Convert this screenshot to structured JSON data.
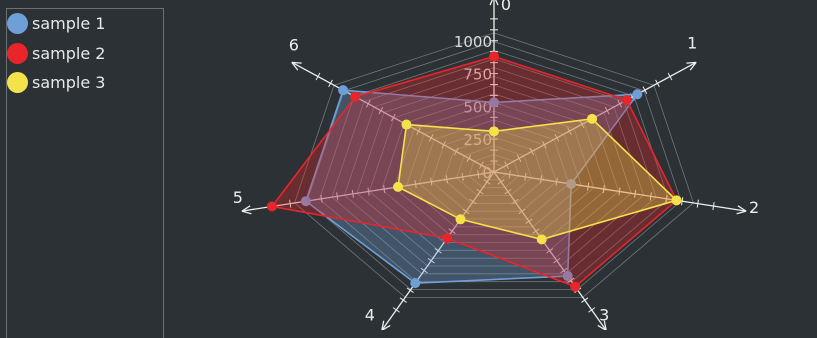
{
  "chart_data": {
    "type": "radar",
    "axes": [
      "0",
      "1",
      "2",
      "3",
      "4",
      "5",
      "6"
    ],
    "radial_ticks": [
      "0",
      "250",
      "500",
      "750",
      "1000"
    ],
    "rmax": 1000,
    "series": [
      {
        "name": "sample 1",
        "values": [
          530,
          950,
          410,
          880,
          940,
          1000,
          1000
        ],
        "color": "#6f9fd8"
      },
      {
        "name": "sample 2",
        "values": [
          880,
          880,
          970,
          970,
          560,
          1180,
          920
        ],
        "color": "#e8252a"
      },
      {
        "name": "sample 3",
        "values": [
          310,
          650,
          970,
          570,
          400,
          510,
          580
        ],
        "color": "#f4e24b"
      }
    ]
  }
}
